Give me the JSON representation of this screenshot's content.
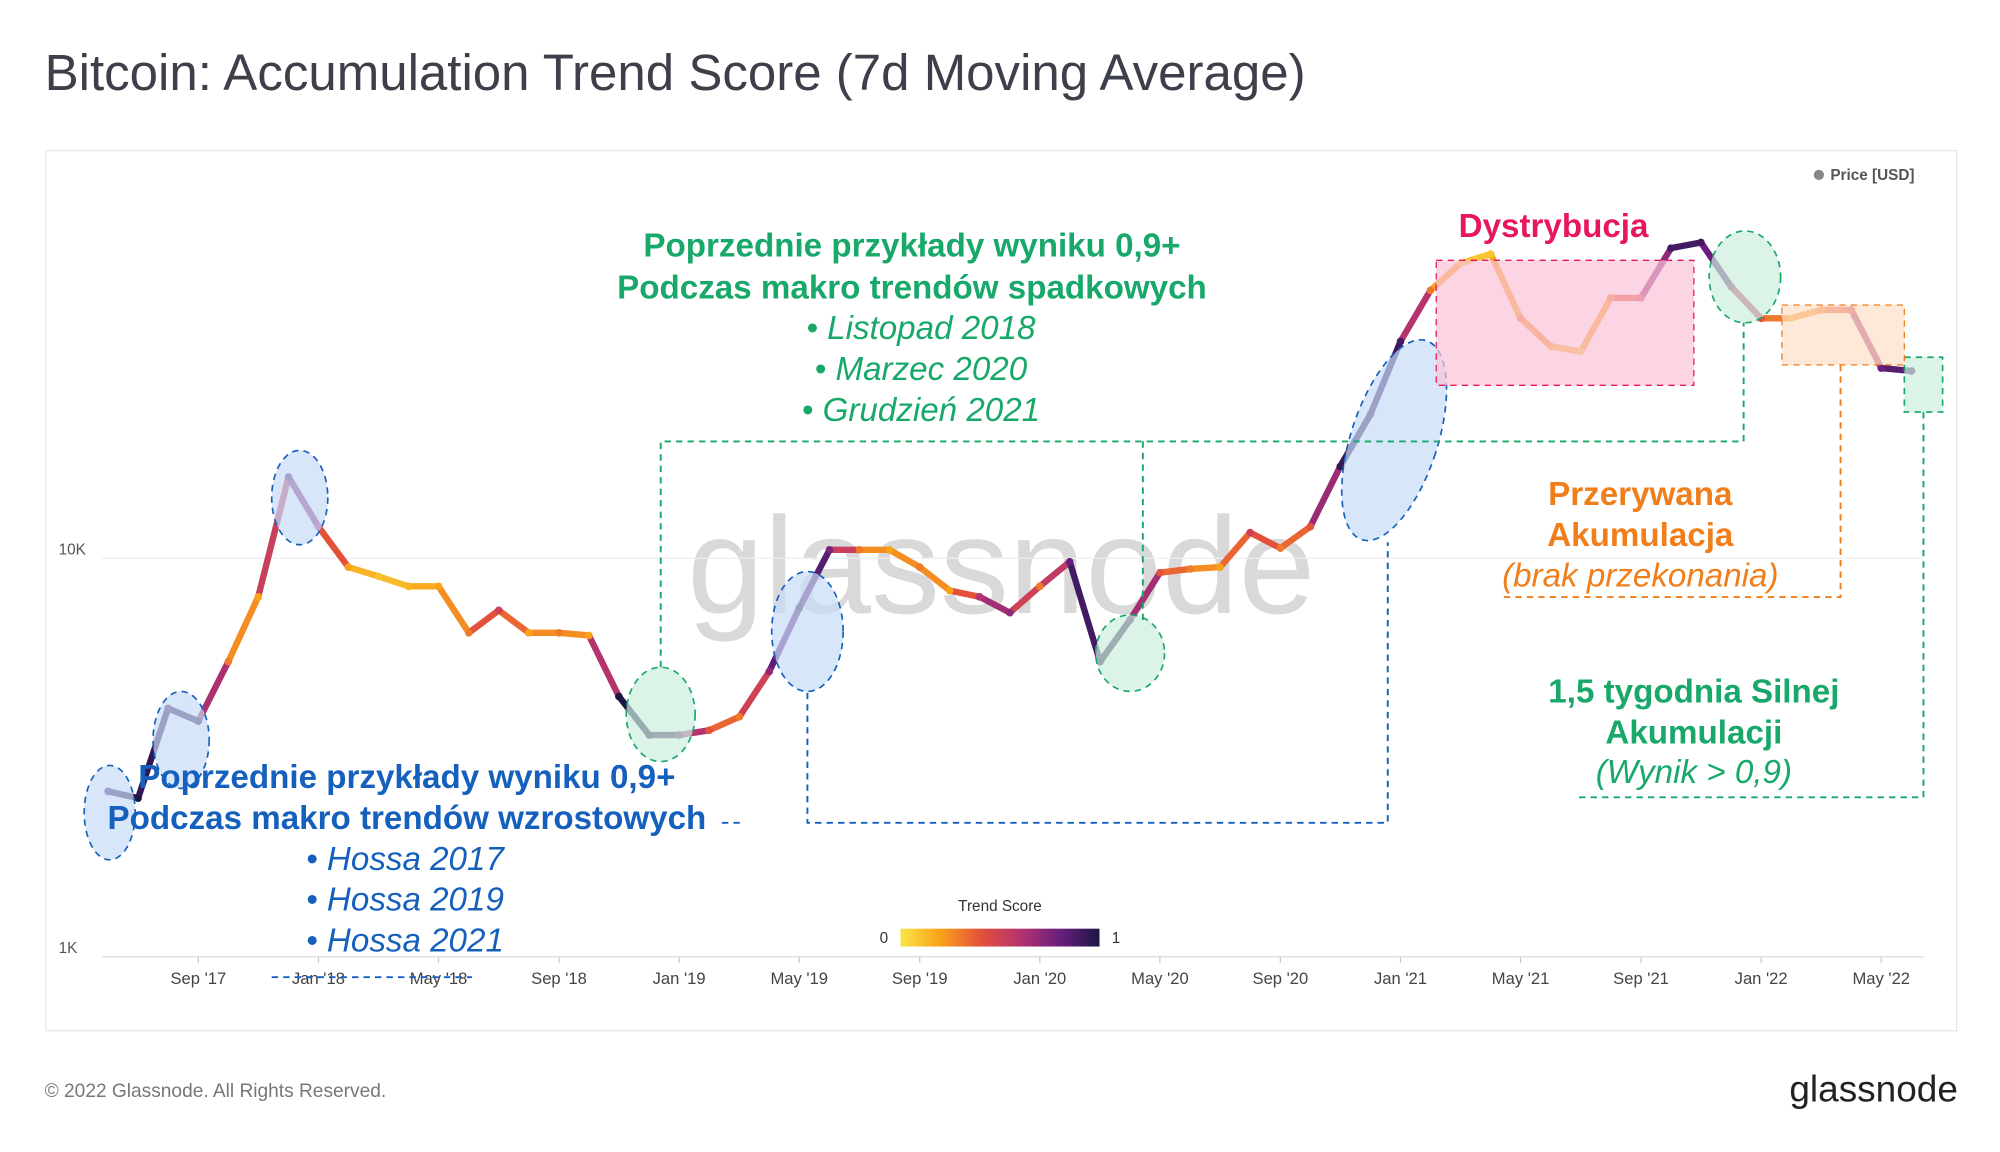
{
  "chart_data": {
    "type": "line",
    "title": "Bitcoin: Accumulation Trend Score (7d Moving Average)",
    "legend": "Price [USD]",
    "legend_color": "#888888",
    "log_y": true,
    "grid": true,
    "xlim": [
      2017.4,
      2022.45
    ],
    "ylim": [
      1000,
      93000
    ],
    "yticks": [
      {
        "value": 1000,
        "label": "1K"
      },
      {
        "value": 10000,
        "label": "10K"
      }
    ],
    "xticks": [
      {
        "value": 2017.667,
        "label": "Sep '17"
      },
      {
        "value": 2018.0,
        "label": "Jan '18"
      },
      {
        "value": 2018.333,
        "label": "May '18"
      },
      {
        "value": 2018.667,
        "label": "Sep '18"
      },
      {
        "value": 2019.0,
        "label": "Jan '19"
      },
      {
        "value": 2019.333,
        "label": "May '19"
      },
      {
        "value": 2019.667,
        "label": "Sep '19"
      },
      {
        "value": 2020.0,
        "label": "Jan '20"
      },
      {
        "value": 2020.333,
        "label": "May '20"
      },
      {
        "value": 2020.667,
        "label": "Sep '20"
      },
      {
        "value": 2021.0,
        "label": "Jan '21"
      },
      {
        "value": 2021.333,
        "label": "May '21"
      },
      {
        "value": 2021.667,
        "label": "Sep '21"
      },
      {
        "value": 2022.0,
        "label": "Jan '22"
      },
      {
        "value": 2022.333,
        "label": "May '22"
      }
    ],
    "x": [
      2017.417,
      2017.5,
      2017.583,
      2017.667,
      2017.75,
      2017.833,
      2017.917,
      2018.0,
      2018.083,
      2018.167,
      2018.25,
      2018.333,
      2018.417,
      2018.5,
      2018.583,
      2018.667,
      2018.75,
      2018.833,
      2018.917,
      2019.0,
      2019.083,
      2019.167,
      2019.25,
      2019.333,
      2019.417,
      2019.5,
      2019.583,
      2019.667,
      2019.75,
      2019.833,
      2019.917,
      2020.0,
      2020.083,
      2020.167,
      2020.25,
      2020.333,
      2020.417,
      2020.5,
      2020.583,
      2020.667,
      2020.75,
      2020.833,
      2020.917,
      2021.0,
      2021.083,
      2021.167,
      2021.25,
      2021.333,
      2021.417,
      2021.5,
      2021.583,
      2021.667,
      2021.75,
      2021.833,
      2021.917,
      2022.0,
      2022.083,
      2022.167,
      2022.25,
      2022.333,
      2022.417
    ],
    "series": [
      {
        "name": "Price [USD]",
        "values": [
          2600,
          2500,
          4200,
          3900,
          5500,
          8000,
          16000,
          12000,
          9500,
          9000,
          8500,
          8500,
          6500,
          7400,
          6500,
          6500,
          6400,
          4500,
          3600,
          3600,
          3700,
          4000,
          5200,
          7500,
          10500,
          10500,
          10500,
          9500,
          8300,
          8000,
          7300,
          8500,
          9800,
          5500,
          7000,
          9200,
          9400,
          9500,
          11600,
          10600,
          12000,
          17000,
          23000,
          35000,
          47000,
          55000,
          58000,
          40000,
          34000,
          33000,
          45000,
          45000,
          60000,
          62000,
          48000,
          40000,
          40000,
          42000,
          42000,
          30000,
          29500
        ],
        "scores": [
          0.9,
          1.0,
          0.9,
          0.95,
          0.3,
          0.2,
          0.85,
          0.6,
          0.2,
          0.1,
          0.15,
          0.2,
          0.3,
          0.5,
          0.2,
          0.3,
          0.2,
          1.0,
          1.0,
          0.8,
          0.4,
          0.3,
          0.7,
          0.95,
          0.75,
          0.3,
          0.2,
          0.3,
          0.2,
          0.6,
          0.7,
          0.3,
          0.8,
          1.0,
          0.9,
          0.4,
          0.3,
          0.2,
          0.5,
          0.3,
          0.4,
          0.95,
          0.95,
          0.9,
          0.3,
          0.1,
          0.1,
          0.3,
          0.2,
          0.1,
          0.3,
          0.5,
          0.9,
          0.9,
          0.7,
          0.4,
          0.2,
          0.3,
          0.5,
          0.8,
          0.9
        ]
      }
    ],
    "colorbar": {
      "title": "Trend Score",
      "min": 0,
      "max": 1
    },
    "colorscale": [
      "#f9e547",
      "#f9a21a",
      "#e4513a",
      "#b5346f",
      "#6a1f7e",
      "#1c1645"
    ],
    "annotations": {
      "bear": [
        "Poprzednie przykłady wyniku 0,9+",
        "Podczas makro trendów spadkowych",
        "•  Listopad 2018",
        "•  Marzec 2020",
        "•  Grudzień 2021"
      ],
      "bull": [
        "Poprzednie przykłady wyniku 0,9+",
        "Podczas makro trendów wzrostowych",
        "•  Hossa 2017",
        "•  Hossa 2019",
        "•  Hossa 2021"
      ],
      "distribution": "Dystrybucja",
      "interrupted": [
        "Przerywana",
        "Akumulacja",
        "(brak przekonania)"
      ],
      "strong": [
        "1,5 tygodnia Silnej",
        "Akumulacji",
        "(Wynik > 0,9)"
      ]
    },
    "watermark": "glassnode",
    "footer": "© 2022 Glassnode. All Rights Reserved.",
    "logo": "glassnode"
  }
}
